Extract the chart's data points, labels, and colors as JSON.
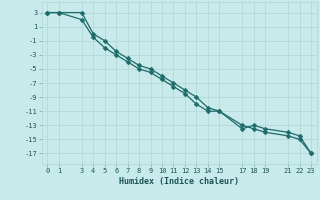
{
  "xlabel": "Humidex (Indice chaleur)",
  "bg_color": "#c8eaea",
  "grid_color": "#b0d4d4",
  "line_color": "#1e6b6b",
  "line1_x": [
    0,
    1,
    3,
    4,
    5,
    6,
    7,
    8,
    9,
    10,
    11,
    12,
    13,
    14,
    15,
    17,
    18,
    19,
    21,
    22,
    23
  ],
  "line1_y": [
    3,
    3,
    3,
    0,
    -1,
    -2.5,
    -3.5,
    -4.5,
    -5,
    -6,
    -7,
    -8,
    -9,
    -10.5,
    -11,
    -13,
    -13.5,
    -14,
    -14.5,
    -15,
    -17
  ],
  "line2_x": [
    0,
    1,
    3,
    4,
    5,
    6,
    7,
    8,
    9,
    10,
    11,
    12,
    13,
    14,
    15,
    17,
    18,
    19,
    21,
    22,
    23
  ],
  "line2_y": [
    3,
    3,
    2,
    -0.5,
    -2,
    -3,
    -4,
    -5,
    -5.5,
    -6.5,
    -7.5,
    -8.5,
    -10,
    -11,
    -11,
    -13.5,
    -13,
    -13.5,
    -14,
    -14.5,
    -17
  ],
  "xlim": [
    -0.5,
    23.5
  ],
  "ylim": [
    -18.5,
    4.5
  ],
  "xticks": [
    0,
    1,
    3,
    4,
    5,
    6,
    7,
    8,
    9,
    10,
    11,
    12,
    13,
    14,
    15,
    17,
    18,
    19,
    21,
    22,
    23
  ],
  "yticks": [
    3,
    1,
    -1,
    -3,
    -5,
    -7,
    -9,
    -11,
    -13,
    -15,
    -17
  ],
  "markersize": 2.5,
  "linewidth": 0.9,
  "tick_fontsize": 5,
  "xlabel_fontsize": 6
}
